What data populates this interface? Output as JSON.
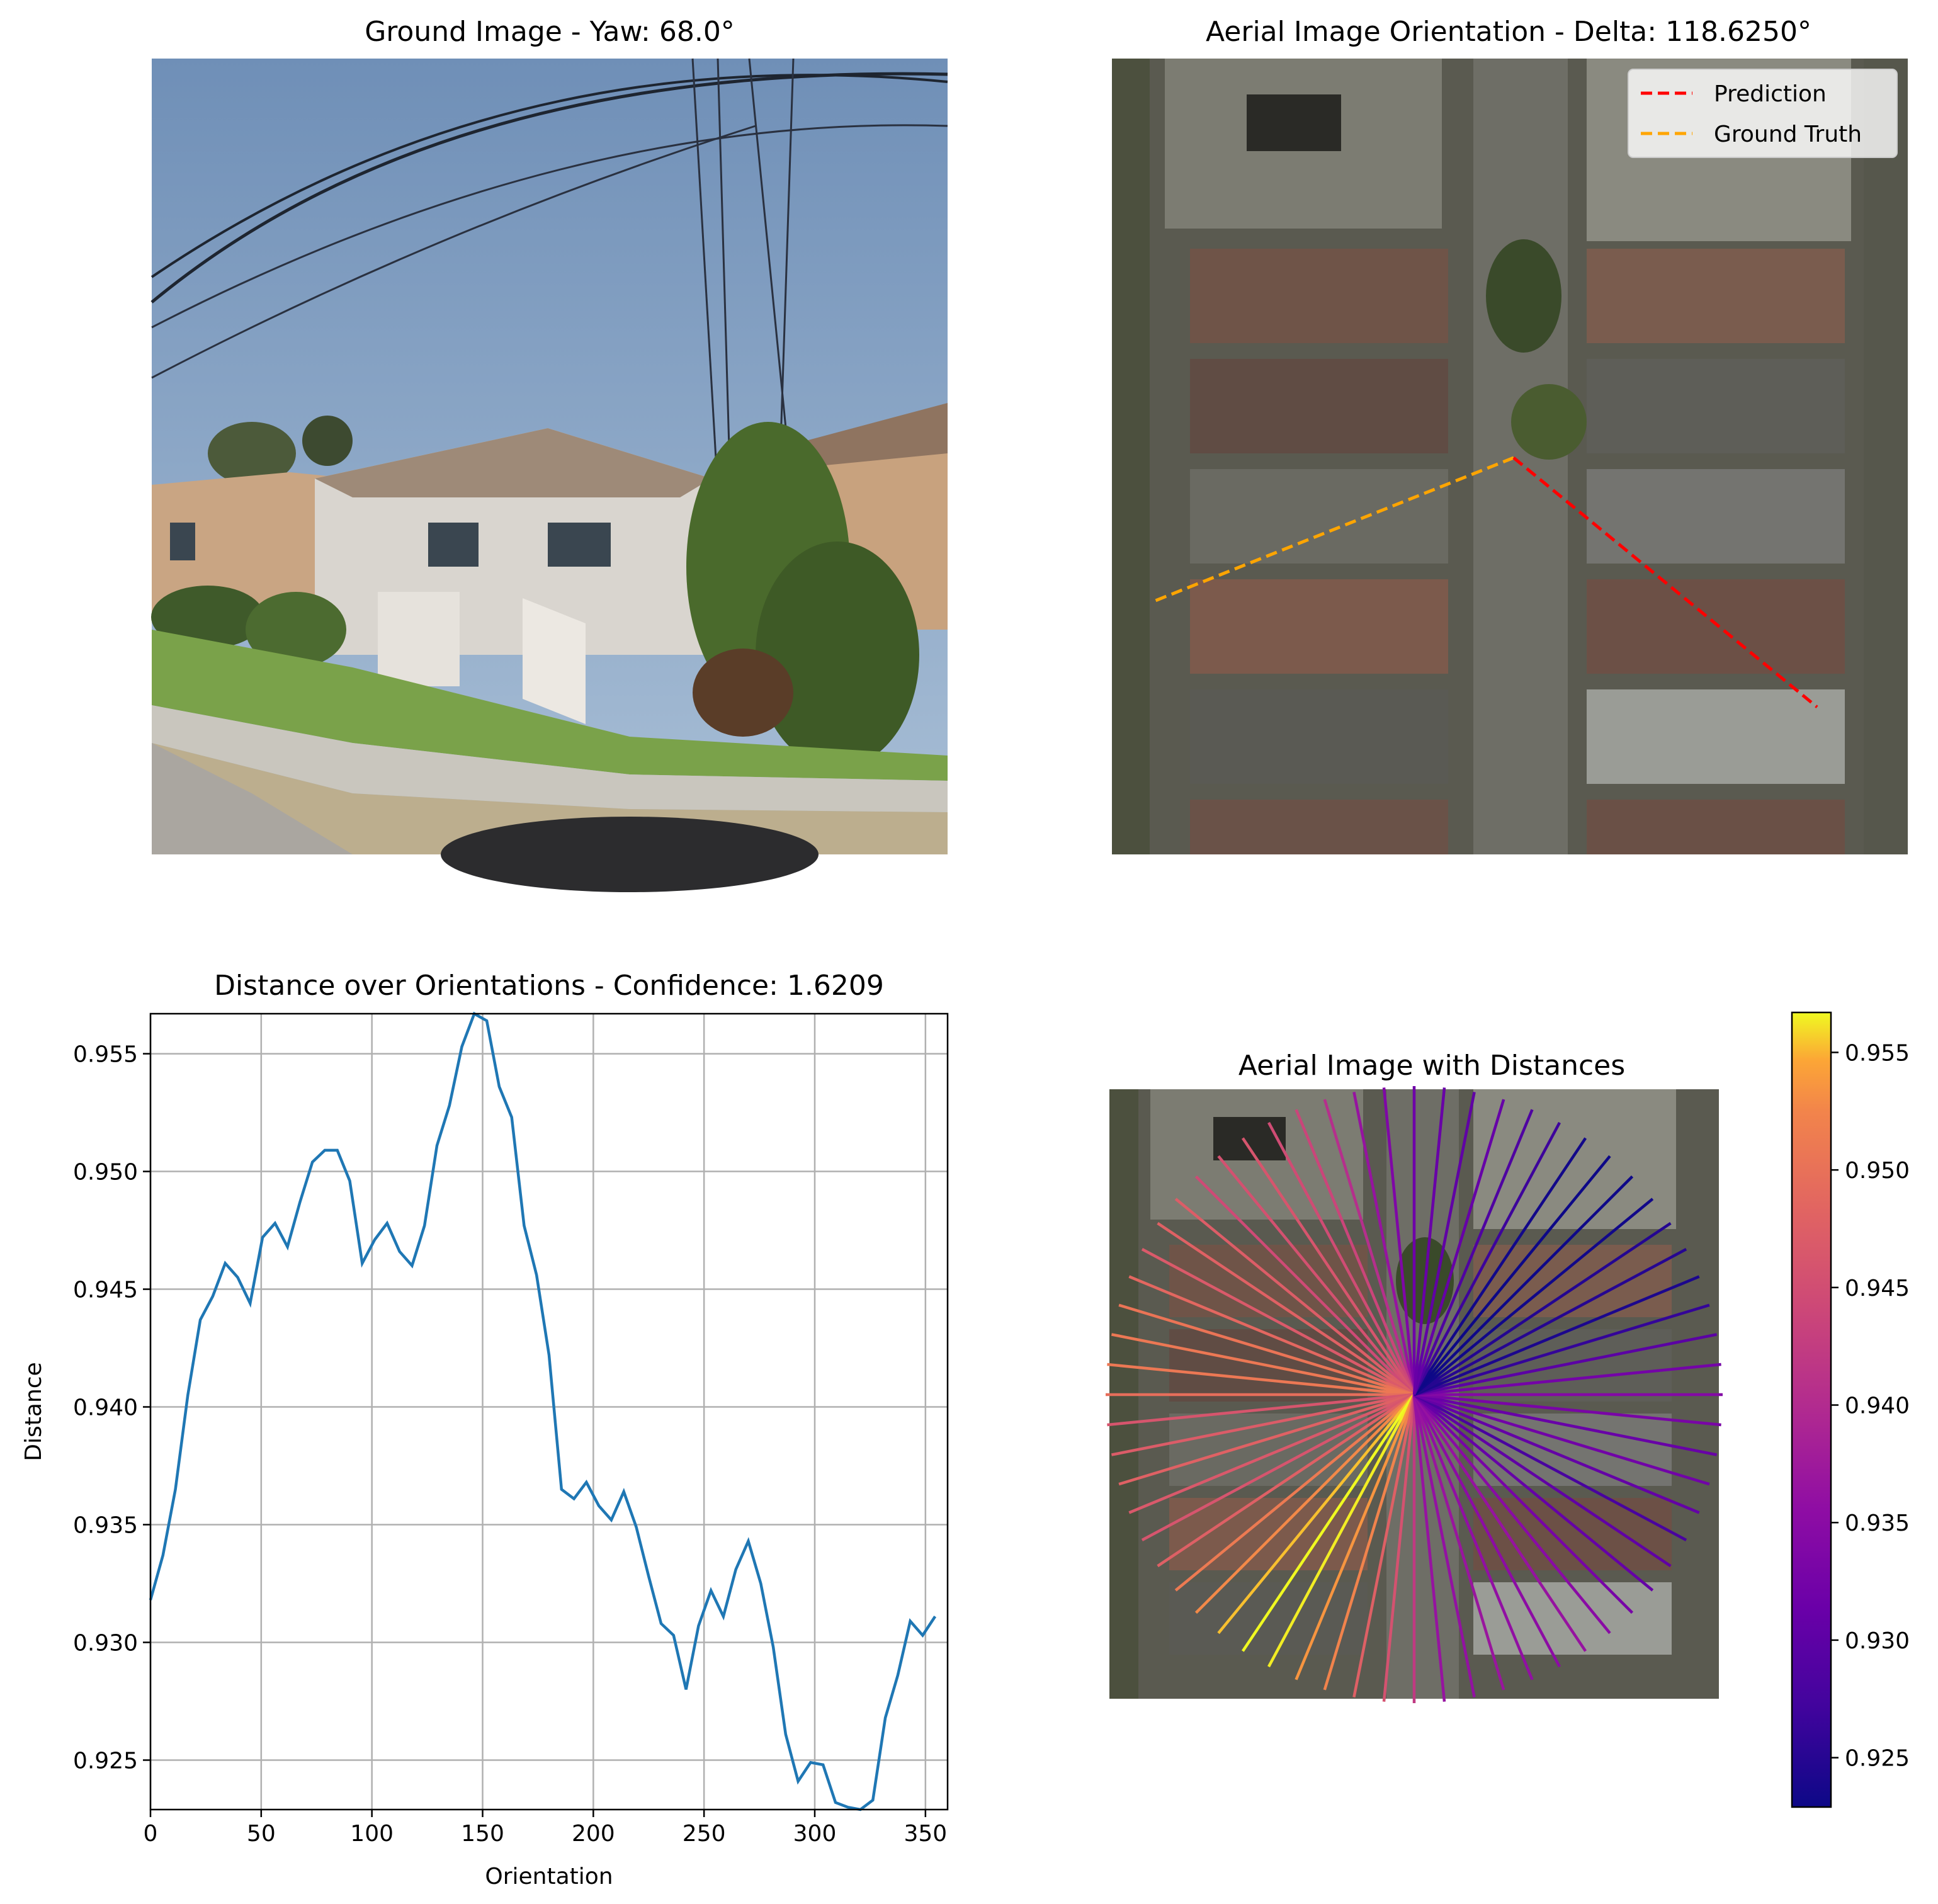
{
  "ground": {
    "title": "Ground Image - Yaw: 68.0°"
  },
  "aerial": {
    "title": "Aerial Image Orientation - Delta: 118.6250°",
    "legend": [
      {
        "label": "Prediction",
        "color": "#ff0000"
      },
      {
        "label": "Ground Truth",
        "color": "#ffa500"
      }
    ],
    "prediction_deg": 122,
    "ground_truth_deg": 243
  },
  "chart_data": {
    "type": "line",
    "title": "Distance over Orientations - Confidence: 1.6209",
    "xlabel": "Orientation",
    "ylabel": "Distance",
    "xlim": [
      0,
      360
    ],
    "ylim": [
      0.9229,
      0.9567
    ],
    "grid": true,
    "color": "#1f77b4",
    "x_ticks": [
      "0",
      "50",
      "100",
      "150",
      "200",
      "250",
      "300",
      "350"
    ],
    "y_ticks": [
      "0.925",
      "0.930",
      "0.935",
      "0.940",
      "0.945",
      "0.950",
      "0.955"
    ],
    "x": [
      0,
      5.625,
      11.25,
      16.875,
      22.5,
      28.125,
      33.75,
      39.375,
      45,
      50.625,
      56.25,
      61.875,
      67.5,
      73.125,
      78.75,
      84.375,
      90,
      95.625,
      101.25,
      106.875,
      112.5,
      118.125,
      123.75,
      129.375,
      135,
      140.625,
      146.25,
      151.875,
      157.5,
      163.125,
      168.75,
      174.375,
      180,
      185.625,
      191.25,
      196.875,
      202.5,
      208.125,
      213.75,
      219.375,
      225,
      230.625,
      236.25,
      241.875,
      247.5,
      253.125,
      258.75,
      264.375,
      270,
      275.625,
      281.25,
      286.875,
      292.5,
      298.125,
      303.75,
      309.375,
      315,
      320.625,
      326.25,
      331.875,
      337.5,
      343.125,
      348.75,
      354.375
    ],
    "values": [
      0.9318,
      0.9337,
      0.9365,
      0.9405,
      0.9437,
      0.9447,
      0.9461,
      0.9455,
      0.9444,
      0.9472,
      0.9478,
      0.9468,
      0.9487,
      0.9504,
      0.9509,
      0.9509,
      0.9496,
      0.9461,
      0.9471,
      0.9478,
      0.9466,
      0.946,
      0.9477,
      0.9511,
      0.9528,
      0.9553,
      0.9567,
      0.9564,
      0.9536,
      0.9523,
      0.9477,
      0.9456,
      0.9422,
      0.9365,
      0.9361,
      0.9368,
      0.9358,
      0.9352,
      0.9364,
      0.9349,
      0.9328,
      0.9308,
      0.9303,
      0.928,
      0.9307,
      0.9322,
      0.9311,
      0.9331,
      0.9343,
      0.9325,
      0.9298,
      0.9261,
      0.9241,
      0.9249,
      0.9248,
      0.9232,
      0.923,
      0.9229,
      0.9233,
      0.9268,
      0.9286,
      0.9309,
      0.9303,
      0.9311
    ]
  },
  "distances": {
    "title": "Aerial Image with Distances",
    "colormap": "plasma",
    "colorbar_ticks": [
      "0.925",
      "0.930",
      "0.935",
      "0.940",
      "0.945",
      "0.950",
      "0.955"
    ],
    "colorbar_range": [
      0.9229,
      0.9567
    ]
  }
}
